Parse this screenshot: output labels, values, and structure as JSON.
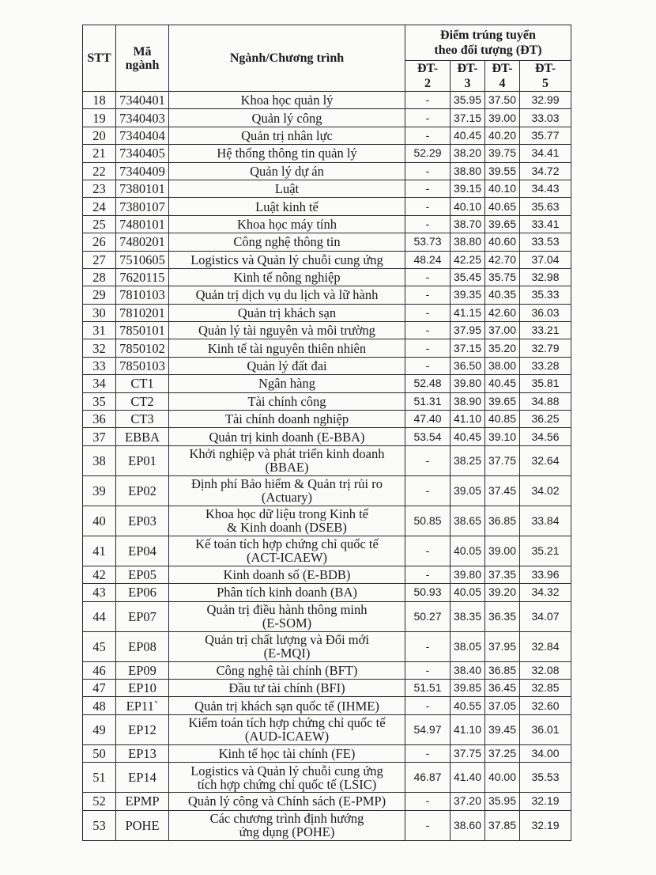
{
  "header": {
    "stt": "STT",
    "code": "Mã\nngành",
    "program": "Ngành/Chương trình",
    "score_group": "Điểm trúng tuyển\ntheo đối tượng (ĐT)",
    "columns": [
      "ĐT-\n2",
      "ĐT-\n3",
      "ĐT-\n4",
      "ĐT-\n5"
    ]
  },
  "rows": [
    {
      "stt": "18",
      "code": "7340401",
      "name": "Khoa học quản lý",
      "dt2": "-",
      "dt3": "35.95",
      "dt4": "37.50",
      "dt5": "32.99"
    },
    {
      "stt": "19",
      "code": "7340403",
      "name": "Quản lý công",
      "dt2": "-",
      "dt3": "37.15",
      "dt4": "39.00",
      "dt5": "33.03"
    },
    {
      "stt": "20",
      "code": "7340404",
      "name": "Quản trị nhân lực",
      "dt2": "-",
      "dt3": "40.45",
      "dt4": "40.20",
      "dt5": "35.77"
    },
    {
      "stt": "21",
      "code": "7340405",
      "name": "Hệ thống thông tin quản lý",
      "dt2": "52.29",
      "dt3": "38.20",
      "dt4": "39.75",
      "dt5": "34.41"
    },
    {
      "stt": "22",
      "code": "7340409",
      "name": "Quản lý dự án",
      "dt2": "-",
      "dt3": "38.80",
      "dt4": "39.55",
      "dt5": "34.72"
    },
    {
      "stt": "23",
      "code": "7380101",
      "name": "Luật",
      "dt2": "-",
      "dt3": "39.15",
      "dt4": "40.10",
      "dt5": "34.43"
    },
    {
      "stt": "24",
      "code": "7380107",
      "name": "Luật kinh tế",
      "dt2": "-",
      "dt3": "40.10",
      "dt4": "40.65",
      "dt5": "35.63"
    },
    {
      "stt": "25",
      "code": "7480101",
      "name": "Khoa học máy tính",
      "dt2": "-",
      "dt3": "38.70",
      "dt4": "39.65",
      "dt5": "33.41"
    },
    {
      "stt": "26",
      "code": "7480201",
      "name": "Công nghệ thông tin",
      "dt2": "53.73",
      "dt3": "38.80",
      "dt4": "40.60",
      "dt5": "33.53"
    },
    {
      "stt": "27",
      "code": "7510605",
      "name": "Logistics và Quản lý chuỗi cung ứng",
      "dt2": "48.24",
      "dt3": "42.25",
      "dt4": "42.70",
      "dt5": "37.04"
    },
    {
      "stt": "28",
      "code": "7620115",
      "name": "Kinh tế nông nghiệp",
      "dt2": "-",
      "dt3": "35.45",
      "dt4": "35.75",
      "dt5": "32.98"
    },
    {
      "stt": "29",
      "code": "7810103",
      "name": "Quản trị dịch vụ du lịch và lữ hành",
      "dt2": "-",
      "dt3": "39.35",
      "dt4": "40.35",
      "dt5": "35.33"
    },
    {
      "stt": "30",
      "code": "7810201",
      "name": "Quản trị khách sạn",
      "dt2": "-",
      "dt3": "41.15",
      "dt4": "42.60",
      "dt5": "36.03"
    },
    {
      "stt": "31",
      "code": "7850101",
      "name": "Quản lý tài nguyên và môi trường",
      "dt2": "-",
      "dt3": "37.95",
      "dt4": "37.00",
      "dt5": "33.21"
    },
    {
      "stt": "32",
      "code": "7850102",
      "name": "Kinh tế tài nguyên thiên nhiên",
      "dt2": "-",
      "dt3": "37.15",
      "dt4": "35.20",
      "dt5": "32.79"
    },
    {
      "stt": "33",
      "code": "7850103",
      "name": "Quản lý đất đai",
      "dt2": "-",
      "dt3": "36.50",
      "dt4": "38.00",
      "dt5": "33.28"
    },
    {
      "stt": "34",
      "code": "CT1",
      "name": "Ngân hàng",
      "dt2": "52.48",
      "dt3": "39.80",
      "dt4": "40.45",
      "dt5": "35.81"
    },
    {
      "stt": "35",
      "code": "CT2",
      "name": "Tài chính công",
      "dt2": "51.31",
      "dt3": "38.90",
      "dt4": "39.65",
      "dt5": "34.88"
    },
    {
      "stt": "36",
      "code": "CT3",
      "name": "Tài chính doanh nghiệp",
      "dt2": "47.40",
      "dt3": "41.10",
      "dt4": "40.85",
      "dt5": "36.25"
    },
    {
      "stt": "37",
      "code": "EBBA",
      "name": "Quản trị kinh doanh (E-BBA)",
      "dt2": "53.54",
      "dt3": "40.45",
      "dt4": "39.10",
      "dt5": "34.56"
    },
    {
      "stt": "38",
      "code": "EP01",
      "name": "Khởi nghiệp và phát triển kinh doanh\n(BBAE)",
      "dt2": "-",
      "dt3": "38.25",
      "dt4": "37.75",
      "dt5": "32.64"
    },
    {
      "stt": "39",
      "code": "EP02",
      "name": "Định phí Bảo hiểm & Quản trị rủi ro\n(Actuary)",
      "dt2": "-",
      "dt3": "39.05",
      "dt4": "37.45",
      "dt5": "34.02"
    },
    {
      "stt": "40",
      "code": "EP03",
      "name": "Khoa học dữ liệu trong Kinh tế\n& Kinh doanh (DSEB)",
      "dt2": "50.85",
      "dt3": "38.65",
      "dt4": "36.85",
      "dt5": "33.84"
    },
    {
      "stt": "41",
      "code": "EP04",
      "name": "Kế toán tích hợp chứng chỉ quốc tế\n(ACT-ICAEW)",
      "dt2": "-",
      "dt3": "40.05",
      "dt4": "39.00",
      "dt5": "35.21"
    },
    {
      "stt": "42",
      "code": "EP05",
      "name": "Kinh doanh số (E-BDB)",
      "dt2": "-",
      "dt3": "39.80",
      "dt4": "37.35",
      "dt5": "33.96"
    },
    {
      "stt": "43",
      "code": "EP06",
      "name": "Phân tích kinh doanh (BA)",
      "dt2": "50.93",
      "dt3": "40.05",
      "dt4": "39.20",
      "dt5": "34.32"
    },
    {
      "stt": "44",
      "code": "EP07",
      "name": "Quản trị điều hành thông minh\n(E-SOM)",
      "dt2": "50.27",
      "dt3": "38.35",
      "dt4": "36.35",
      "dt5": "34.07"
    },
    {
      "stt": "45",
      "code": "EP08",
      "name": "Quản trị chất lượng và Đổi mới\n(E-MQI)",
      "dt2": "-",
      "dt3": "38.05",
      "dt4": "37.95",
      "dt5": "32.84"
    },
    {
      "stt": "46",
      "code": "EP09",
      "name": "Công nghệ tài chính (BFT)",
      "dt2": "-",
      "dt3": "38.40",
      "dt4": "36.85",
      "dt5": "32.08"
    },
    {
      "stt": "47",
      "code": "EP10",
      "name": "Đầu tư tài chính (BFI)",
      "dt2": "51.51",
      "dt3": "39.85",
      "dt4": "36.45",
      "dt5": "32.85"
    },
    {
      "stt": "48",
      "code": "EP11`",
      "name": "Quản trị khách sạn quốc tế (IHME)",
      "dt2": "-",
      "dt3": "40.55",
      "dt4": "37.05",
      "dt5": "32.60"
    },
    {
      "stt": "49",
      "code": "EP12",
      "name": "Kiểm toán tích hợp chứng chỉ quốc tế\n(AUD-ICAEW)",
      "dt2": "54.97",
      "dt3": "41.10",
      "dt4": "39.45",
      "dt5": "36.01"
    },
    {
      "stt": "50",
      "code": "EP13",
      "name": "Kinh tế học tài chính (FE)",
      "dt2": "-",
      "dt3": "37.75",
      "dt4": "37.25",
      "dt5": "34.00"
    },
    {
      "stt": "51",
      "code": "EP14",
      "name": "Logistics và Quản lý chuỗi cung ứng\ntích hợp chứng chỉ quốc tế (LSIC)",
      "dt2": "46.87",
      "dt3": "41.40",
      "dt4": "40.00",
      "dt5": "35.53"
    },
    {
      "stt": "52",
      "code": "EPMP",
      "name": "Quản lý công và Chính sách (E-PMP)",
      "dt2": "-",
      "dt3": "37.20",
      "dt4": "35.95",
      "dt5": "32.19"
    },
    {
      "stt": "53",
      "code": "POHE",
      "name": "Các chương trình định hướng\nứng dụng (POHE)",
      "dt2": "-",
      "dt3": "38.60",
      "dt4": "37.85",
      "dt5": "32.19"
    }
  ]
}
